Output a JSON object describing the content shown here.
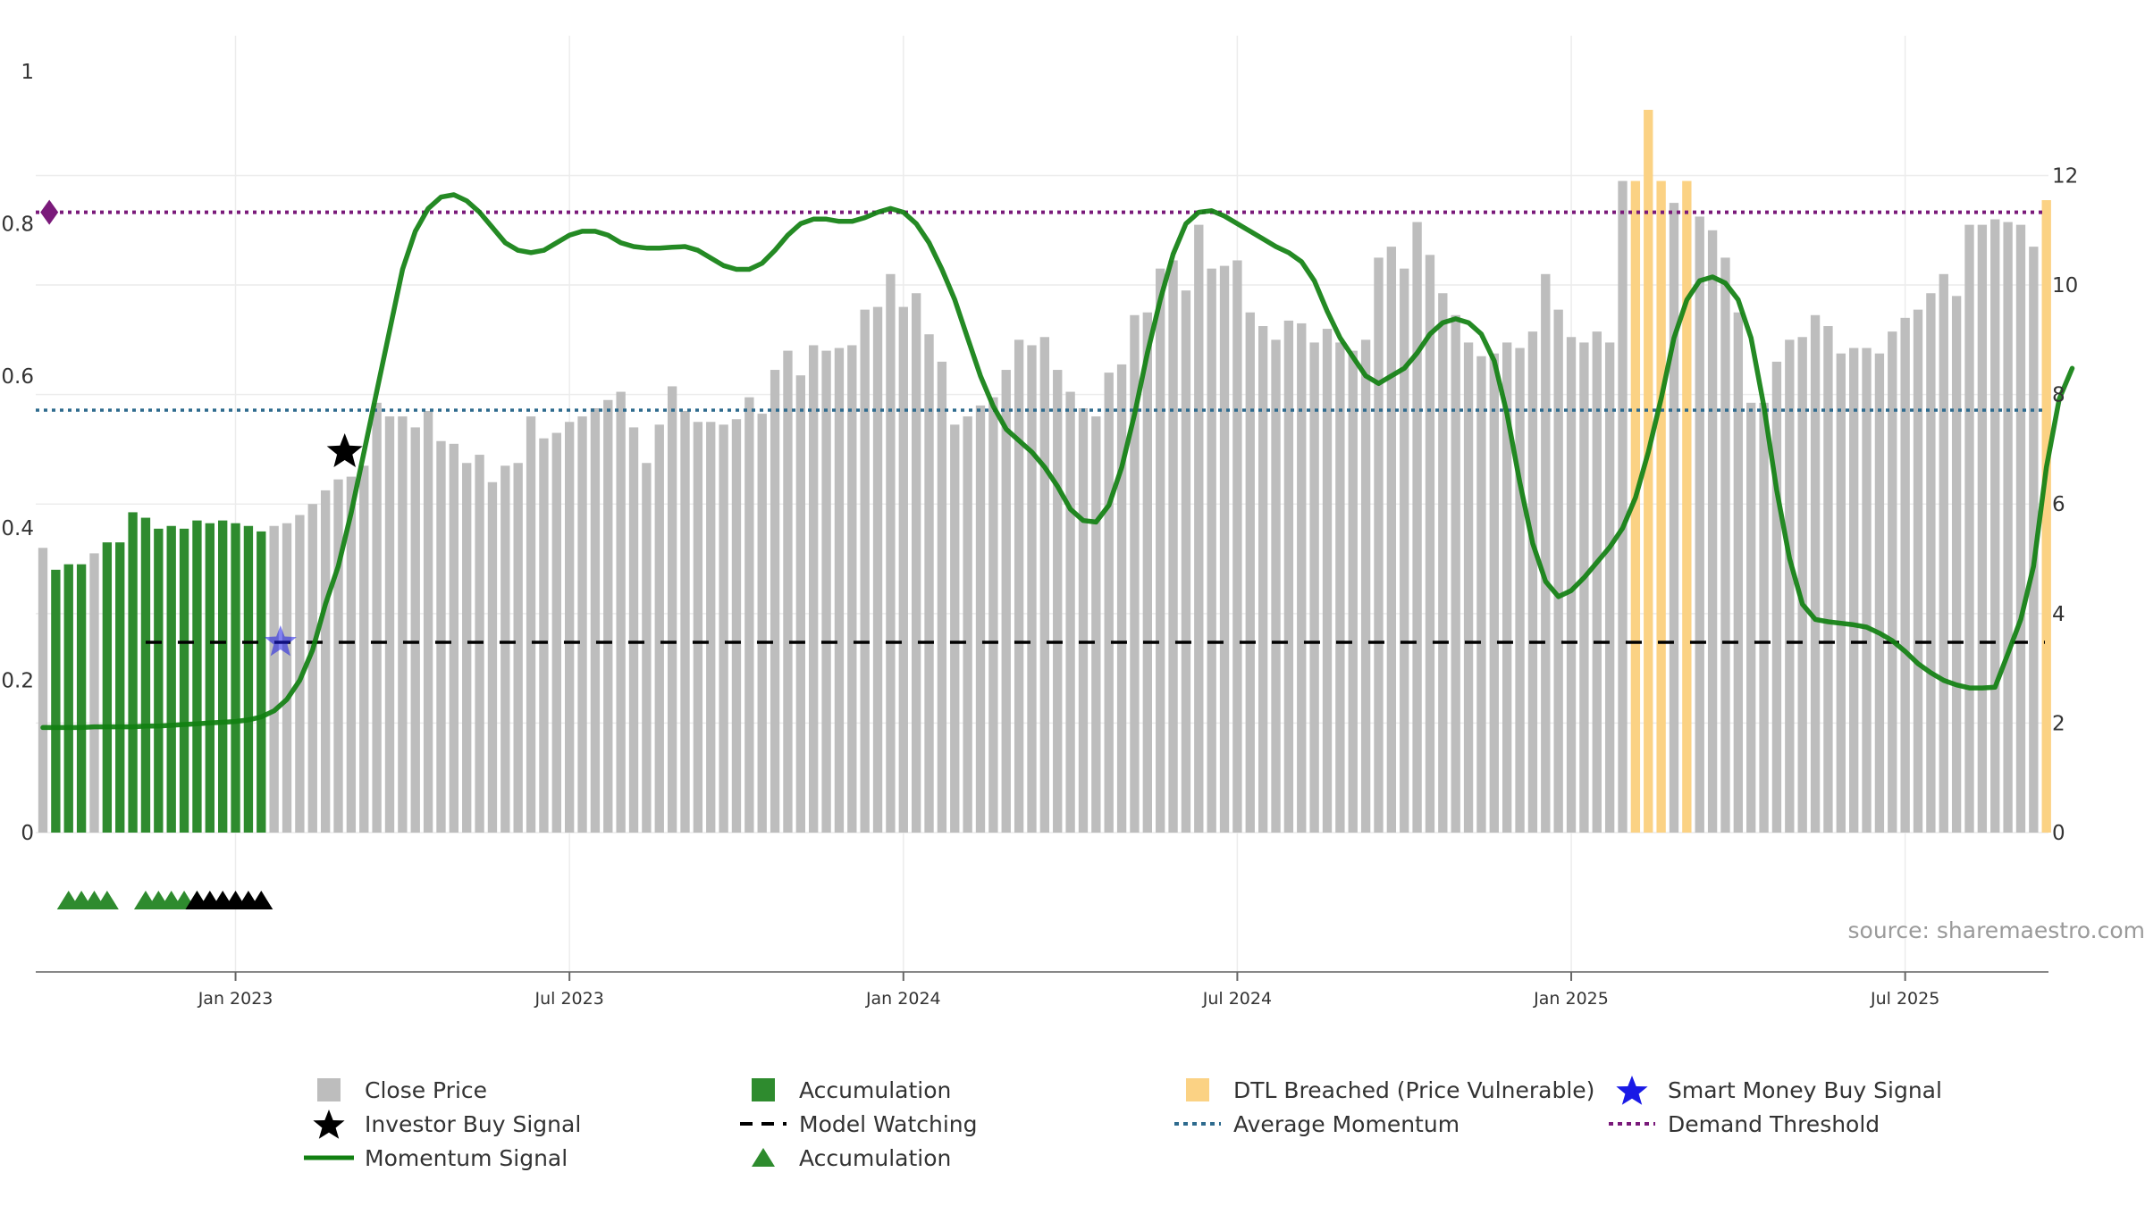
{
  "colors": {
    "close_price": "#bdbdbd",
    "accumulation": "#2e8b2e",
    "dtl_breached": "#fbd284",
    "smart_money": "#1a1ae6",
    "investor_buy": "#000000",
    "momentum": "#118011",
    "average_momentum": "#2e6b8e",
    "demand_threshold": "#7a1a7a",
    "model_watching": "#000000",
    "grid": "#ececec"
  },
  "source_text": "source: sharemaestro.com",
  "legend": [
    {
      "symbol": "square",
      "color_key": "close_price",
      "label": "Close Price"
    },
    {
      "symbol": "square",
      "color_key": "accumulation",
      "label": "Accumulation"
    },
    {
      "symbol": "square",
      "color_key": "dtl_breached",
      "label": "DTL Breached (Price Vulnerable)"
    },
    {
      "symbol": "star",
      "color_key": "smart_money",
      "label": "Smart Money Buy Signal"
    },
    {
      "symbol": "star",
      "color_key": "investor_buy",
      "label": "Investor Buy Signal"
    },
    {
      "symbol": "dash",
      "color_key": "model_watching",
      "label": "Model Watching"
    },
    {
      "symbol": "dot",
      "color_key": "average_momentum",
      "label": "Average Momentum"
    },
    {
      "symbol": "dot",
      "color_key": "demand_threshold",
      "label": "Demand Threshold"
    },
    {
      "symbol": "line",
      "color_key": "momentum",
      "label": "Momentum Signal"
    },
    {
      "symbol": "triangle",
      "color_key": "accumulation",
      "label": "Accumulation"
    }
  ],
  "chart_data": {
    "type": "bar",
    "title": "",
    "xlabel": "",
    "ylabel": "",
    "grid": true,
    "legend_position": "bottom",
    "x_ticks": [
      "Jan 2023",
      "Jul 2023",
      "Jan 2024",
      "Jul 2024",
      "Jan 2025",
      "Jul 2025"
    ],
    "x_tick_weeks": [
      15,
      41,
      67,
      93,
      119,
      145
    ],
    "y_left": {
      "ylim": [
        0,
        1
      ],
      "ticks": [
        "0",
        "0.2",
        "0.4",
        "0.6",
        "0.8",
        "1"
      ],
      "tick_values": [
        0,
        0.2,
        0.4,
        0.6,
        0.8,
        1
      ]
    },
    "y_right": {
      "ylim": [
        0,
        13.9
      ],
      "ticks": [
        "0",
        "2",
        "4",
        "6",
        "8",
        "10",
        "12"
      ],
      "tick_values": [
        0,
        2,
        4,
        6,
        8,
        10,
        12
      ]
    },
    "close_price": [
      5.2,
      4.8,
      4.9,
      4.9,
      5.1,
      5.3,
      5.3,
      5.85,
      5.75,
      5.55,
      5.6,
      5.55,
      5.7,
      5.65,
      5.7,
      5.65,
      5.6,
      5.5,
      5.6,
      5.65,
      5.8,
      6.0,
      6.25,
      6.45,
      6.5,
      6.7,
      7.85,
      7.6,
      7.6,
      7.4,
      7.7,
      7.15,
      7.1,
      6.75,
      6.9,
      6.4,
      6.7,
      6.75,
      7.6,
      7.2,
      7.3,
      7.5,
      7.6,
      7.75,
      7.9,
      8.05,
      7.4,
      6.75,
      7.45,
      8.15,
      7.7,
      7.5,
      7.5,
      7.45,
      7.55,
      7.95,
      7.65,
      8.45,
      8.8,
      8.35,
      8.9,
      8.8,
      8.85,
      8.9,
      9.55,
      9.6,
      10.2,
      9.6,
      9.85,
      9.1,
      8.6,
      7.45,
      7.6,
      7.8,
      7.95,
      8.45,
      9.0,
      8.9,
      9.05,
      8.45,
      8.05,
      7.75,
      7.6,
      8.4,
      8.55,
      9.45,
      9.5,
      10.3,
      10.45,
      9.9,
      11.1,
      10.3,
      10.35,
      10.45,
      9.5,
      9.25,
      9.0,
      9.35,
      9.3,
      8.95,
      9.2,
      8.95,
      8.8,
      9.0,
      10.5,
      10.7,
      10.3,
      11.15,
      10.55,
      9.85,
      9.45,
      8.95,
      8.7,
      8.75,
      8.95,
      8.85,
      9.15,
      10.2,
      9.55,
      9.05,
      8.95,
      9.15,
      8.95,
      11.9,
      11.9,
      13.2,
      11.9,
      11.5,
      11.9,
      11.25,
      11.0,
      10.5,
      9.5,
      7.85,
      7.85,
      8.6,
      9.0,
      9.05,
      9.45,
      9.25,
      8.75,
      8.85,
      8.85,
      8.75,
      9.15,
      9.4,
      9.55,
      9.85,
      10.2,
      9.8,
      11.1,
      11.1,
      11.2,
      11.15,
      11.1,
      10.7,
      11.55
    ],
    "accumulation_weeks": [
      1,
      2,
      3,
      5,
      6,
      7,
      8,
      9,
      10,
      11,
      12,
      13,
      14,
      15,
      16,
      17
    ],
    "dtl_breached_weeks": [
      124,
      125,
      126,
      128,
      156
    ],
    "momentum": [
      0.138,
      0.138,
      0.138,
      0.138,
      0.139,
      0.139,
      0.139,
      0.139,
      0.14,
      0.14,
      0.141,
      0.142,
      0.143,
      0.144,
      0.145,
      0.146,
      0.148,
      0.152,
      0.16,
      0.175,
      0.2,
      0.24,
      0.3,
      0.35,
      0.42,
      0.5,
      0.58,
      0.66,
      0.74,
      0.79,
      0.82,
      0.835,
      0.838,
      0.83,
      0.815,
      0.795,
      0.775,
      0.765,
      0.762,
      0.765,
      0.775,
      0.785,
      0.79,
      0.79,
      0.785,
      0.775,
      0.77,
      0.768,
      0.768,
      0.769,
      0.77,
      0.765,
      0.755,
      0.745,
      0.74,
      0.74,
      0.748,
      0.765,
      0.785,
      0.8,
      0.806,
      0.806,
      0.803,
      0.803,
      0.808,
      0.815,
      0.82,
      0.815,
      0.8,
      0.775,
      0.74,
      0.7,
      0.65,
      0.6,
      0.56,
      0.53,
      0.515,
      0.5,
      0.48,
      0.455,
      0.425,
      0.41,
      0.408,
      0.43,
      0.48,
      0.55,
      0.63,
      0.7,
      0.76,
      0.8,
      0.815,
      0.817,
      0.81,
      0.8,
      0.79,
      0.78,
      0.77,
      0.762,
      0.75,
      0.725,
      0.685,
      0.65,
      0.625,
      0.6,
      0.59,
      0.6,
      0.61,
      0.63,
      0.655,
      0.67,
      0.675,
      0.67,
      0.655,
      0.62,
      0.55,
      0.46,
      0.38,
      0.33,
      0.31,
      0.318,
      0.335,
      0.355,
      0.375,
      0.4,
      0.44,
      0.5,
      0.57,
      0.65,
      0.7,
      0.725,
      0.73,
      0.722,
      0.7,
      0.65,
      0.56,
      0.45,
      0.36,
      0.3,
      0.28,
      0.277,
      0.275,
      0.273,
      0.27,
      0.262,
      0.252,
      0.238,
      0.222,
      0.21,
      0.2,
      0.194,
      0.19,
      0.19,
      0.191,
      0.235,
      0.28,
      0.35,
      0.48,
      0.57,
      0.61
    ],
    "average_momentum": 0.555,
    "demand_threshold": 0.815,
    "model_watching": 0.25,
    "model_watching_start_week": 8,
    "smart_money_buy": {
      "week": 18.5,
      "value": 0.25
    },
    "investor_buy": {
      "week": 23.5,
      "value": 0.5
    },
    "demand_threshold_marker": {
      "week": 0.5,
      "value": 0.815
    },
    "accumulation_triangles": {
      "green_weeks": [
        2,
        3,
        4,
        5,
        8,
        9,
        10,
        11,
        12
      ],
      "black_weeks": [
        12,
        13,
        14,
        15,
        16,
        17
      ]
    }
  }
}
